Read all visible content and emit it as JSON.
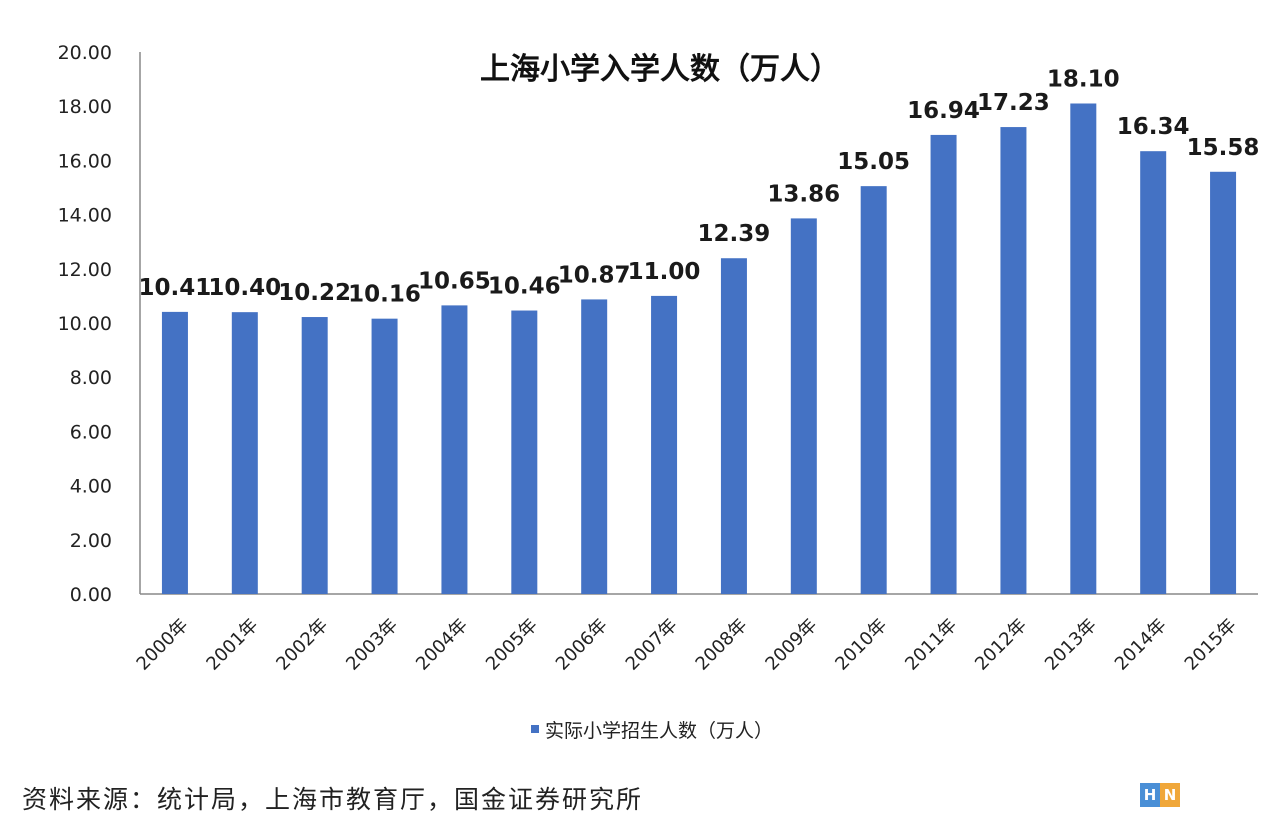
{
  "chart_data": {
    "type": "bar",
    "title": "上海小学入学人数（万人）",
    "categories": [
      "2000年",
      "2001年",
      "2002年",
      "2003年",
      "2004年",
      "2005年",
      "2006年",
      "2007年",
      "2008年",
      "2009年",
      "2010年",
      "2011年",
      "2012年",
      "2013年",
      "2014年",
      "2015年"
    ],
    "series": [
      {
        "name": "实际小学招生人数（万人）",
        "values": [
          10.41,
          10.4,
          10.22,
          10.16,
          10.65,
          10.46,
          10.87,
          11.0,
          12.39,
          13.86,
          15.05,
          16.94,
          17.23,
          18.1,
          16.34,
          15.58
        ],
        "labels": [
          "10.41",
          "10.40",
          "10.22",
          "10.16",
          "10.65",
          "10.46",
          "10.87",
          "11.00",
          "12.39",
          "13.86",
          "15.05",
          "16.94",
          "17.23",
          "18.10",
          "16.34",
          "15.58"
        ]
      }
    ],
    "ylim": [
      0,
      20
    ],
    "yticks": [
      "0.00",
      "2.00",
      "4.00",
      "6.00",
      "8.00",
      "10.00",
      "12.00",
      "14.00",
      "16.00",
      "18.00",
      "20.00"
    ],
    "xlabel": "",
    "ylabel": "",
    "grid": false,
    "legend_position": "bottom",
    "bar_color": "#4472c4"
  },
  "source_note": "资料来源：统计局，上海市教育厅，国金证券研究所",
  "watermark": {
    "h": "H",
    "n": "N"
  }
}
